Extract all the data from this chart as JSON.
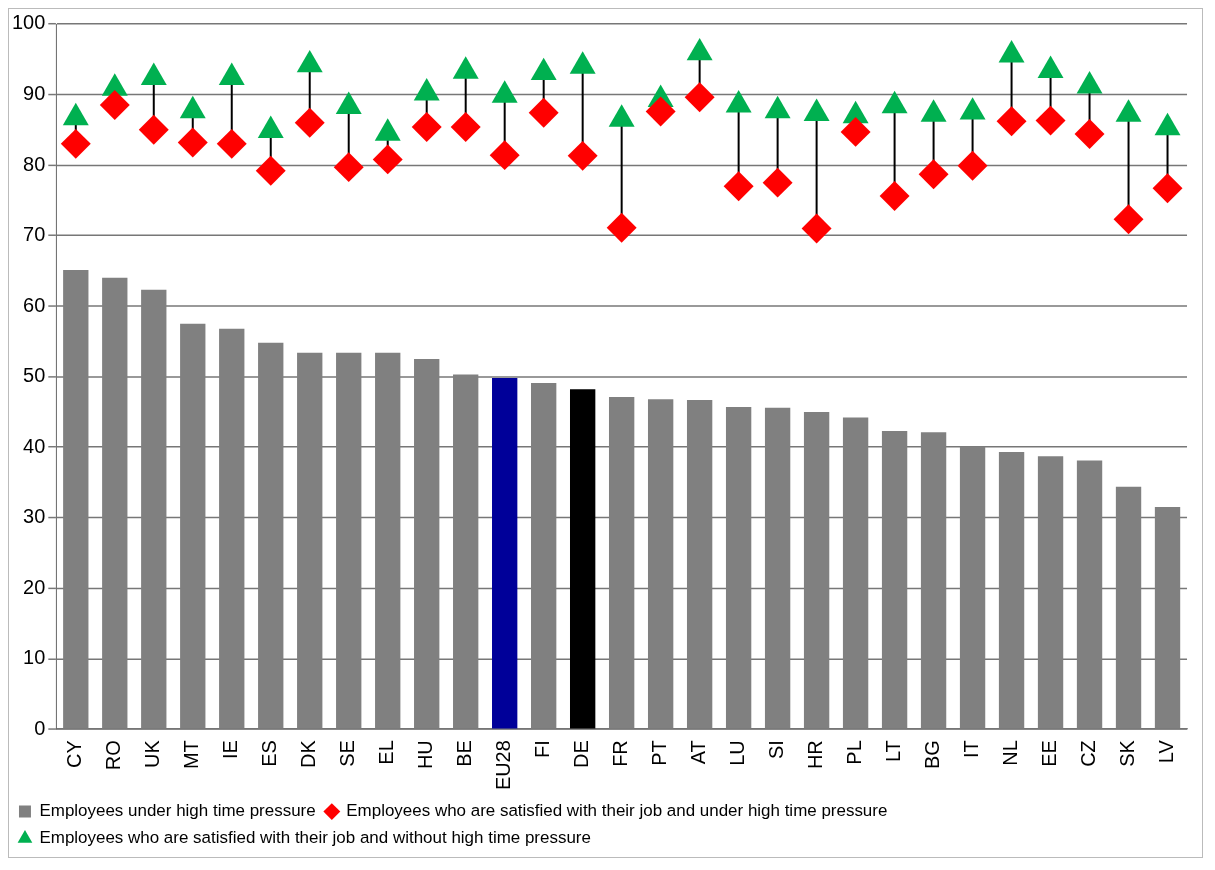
{
  "chart_data": {
    "type": "bar",
    "categories": [
      "CY",
      "RO",
      "UK",
      "MT",
      "IE",
      "ES",
      "DK",
      "SE",
      "EL",
      "HU",
      "BE",
      "EU28",
      "FI",
      "DE",
      "FR",
      "PT",
      "AT",
      "LU",
      "SI",
      "HR",
      "PL",
      "LT",
      "BG",
      "IT",
      "NL",
      "EE",
      "CZ",
      "SK",
      "LV"
    ],
    "series": [
      {
        "name": "Employees under high time pressure",
        "color": "#808080",
        "colors": [
          "#808080",
          "#808080",
          "#808080",
          "#808080",
          "#808080",
          "#808080",
          "#808080",
          "#808080",
          "#808080",
          "#808080",
          "#808080",
          "#000099",
          "#808080",
          "#000000",
          "#808080",
          "#808080",
          "#808080",
          "#808080",
          "#808080",
          "#808080",
          "#808080",
          "#808080",
          "#808080",
          "#808080",
          "#808080",
          "#808080",
          "#808080",
          "#808080",
          "#808080"
        ],
        "values": [
          65.1,
          64.0,
          62.3,
          57.5,
          56.8,
          54.8,
          53.4,
          53.4,
          53.4,
          52.5,
          50.3,
          49.8,
          49.1,
          48.2,
          47.1,
          46.8,
          46.7,
          45.7,
          45.6,
          45.0,
          44.2,
          42.3,
          42.1,
          40.1,
          39.3,
          38.7,
          38.1,
          34.4,
          31.5
        ]
      },
      {
        "name": "Employees who are satisfied with their job and under high time pressure",
        "type": "scatter",
        "marker": "diamond",
        "color": "#ff0000",
        "values": [
          83.0,
          88.5,
          85.0,
          83.2,
          83.0,
          79.2,
          86.0,
          79.7,
          80.8,
          85.4,
          85.4,
          81.4,
          87.4,
          81.3,
          71.1,
          87.6,
          89.6,
          77.0,
          77.5,
          71.0,
          84.7,
          75.6,
          78.7,
          79.9,
          86.2,
          86.3,
          84.4,
          72.3,
          76.7
        ]
      },
      {
        "name": "Employees who are satisfied with their job and without high time pressure",
        "type": "scatter",
        "marker": "triangle",
        "color": "#00b050",
        "values": [
          86.7,
          90.9,
          92.4,
          87.7,
          92.4,
          84.9,
          94.2,
          88.3,
          84.5,
          90.2,
          93.3,
          89.9,
          93.1,
          94.0,
          86.5,
          89.3,
          95.9,
          88.5,
          87.7,
          87.3,
          87.0,
          88.4,
          87.2,
          87.5,
          95.6,
          93.4,
          91.2,
          87.2,
          85.3
        ]
      }
    ],
    "ylim": [
      0,
      100
    ],
    "yticks": [
      0,
      10,
      20,
      30,
      40,
      50,
      60,
      70,
      80,
      90,
      100
    ],
    "grid": "y",
    "legend": "bottom"
  }
}
